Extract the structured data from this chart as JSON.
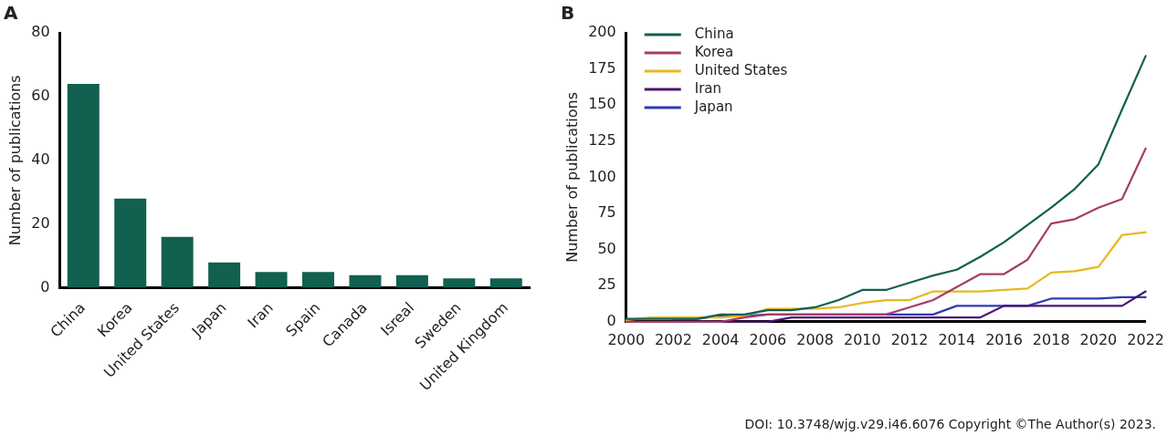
{
  "chart_data": [
    {
      "type": "bar",
      "title": "A",
      "ylabel": "Number of publications",
      "categories": [
        "China",
        "Korea",
        "United States",
        "Japan",
        "Iran",
        "Spain",
        "Canada",
        "Isreal",
        "Sweden",
        "United Kingdom"
      ],
      "values": [
        64,
        28,
        16,
        8,
        5,
        5,
        4,
        4,
        3,
        3
      ],
      "color": "#116050",
      "ylim": [
        0,
        80
      ],
      "yticks": [
        0,
        20,
        40,
        60,
        80
      ]
    },
    {
      "type": "line",
      "title": "B",
      "ylabel": "Number of publications",
      "x": [
        2000,
        2001,
        2002,
        2003,
        2004,
        2005,
        2006,
        2007,
        2008,
        2009,
        2010,
        2011,
        2012,
        2013,
        2014,
        2015,
        2016,
        2017,
        2018,
        2019,
        2020,
        2021,
        2022
      ],
      "series": [
        {
          "name": "China",
          "color": "#116050",
          "values": [
            2,
            2,
            2,
            2,
            5,
            5,
            8,
            8,
            10,
            15,
            22,
            22,
            27,
            32,
            36,
            45,
            55,
            67,
            79,
            92,
            109,
            147,
            184
          ]
        },
        {
          "name": "Korea",
          "color": "#a83c6c",
          "values": [
            0,
            0,
            0,
            0,
            0,
            3,
            5,
            5,
            5,
            5,
            5,
            5,
            10,
            15,
            24,
            33,
            33,
            43,
            68,
            71,
            79,
            85,
            120
          ]
        },
        {
          "name": "United States",
          "color": "#e6b820",
          "values": [
            1,
            3,
            3,
            3,
            3,
            4,
            9,
            9,
            9,
            10,
            13,
            15,
            15,
            21,
            21,
            21,
            22,
            23,
            34,
            35,
            38,
            60,
            62
          ]
        },
        {
          "name": "Iran",
          "color": "#4a1470",
          "values": [
            null,
            null,
            0,
            0,
            0,
            0,
            0,
            3,
            3,
            3,
            3,
            3,
            3,
            3,
            3,
            3,
            11,
            11,
            11,
            11,
            11,
            11,
            21
          ]
        },
        {
          "name": "Japan",
          "color": "#2e3cb0",
          "values": [
            null,
            null,
            2,
            2,
            4,
            4,
            5,
            5,
            5,
            5,
            5,
            5,
            5,
            5,
            11,
            11,
            11,
            11,
            16,
            16,
            16,
            17,
            17
          ]
        }
      ],
      "xlim": [
        2000,
        2022
      ],
      "xticks": [
        2000,
        2002,
        2004,
        2006,
        2008,
        2010,
        2012,
        2014,
        2016,
        2018,
        2020,
        2022
      ],
      "ylim": [
        0,
        200
      ],
      "yticks": [
        0,
        25,
        50,
        75,
        100,
        125,
        150,
        175,
        200
      ],
      "legend": "top left",
      "marker": "none",
      "line_style": "solid",
      "annotations": [
        "DOI: 10.3748/wjg.v29.i46.6076 Copyright ©The Author(s) 2023."
      ]
    }
  ]
}
